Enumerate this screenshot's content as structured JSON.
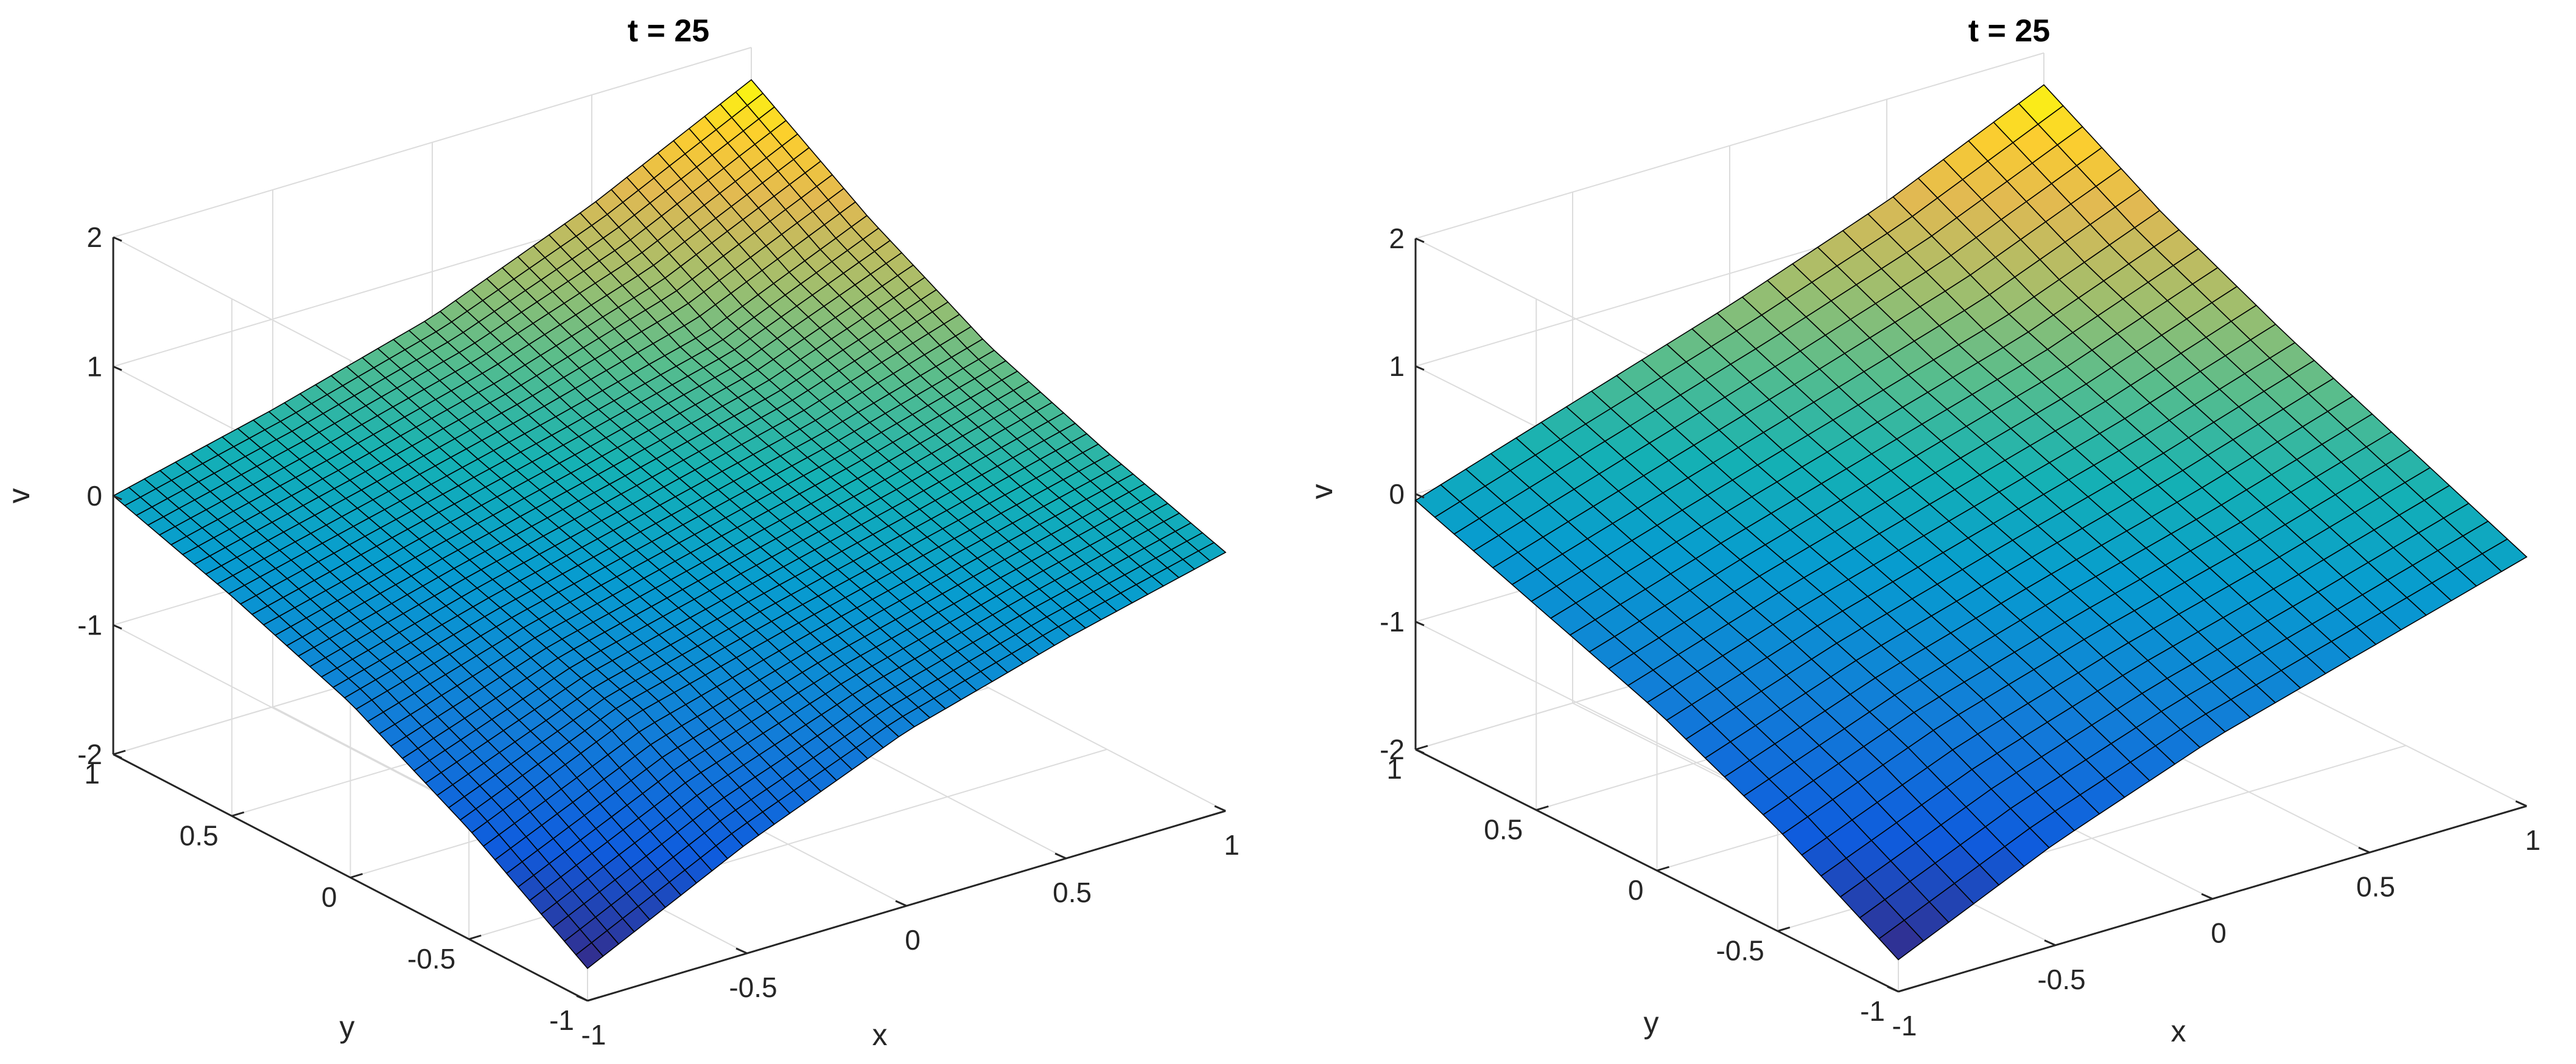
{
  "chart_data": [
    {
      "type": "surface",
      "title": "t = 25",
      "xlabel": "x",
      "ylabel": "y",
      "zlabel": "v",
      "xlim": [
        -1,
        1
      ],
      "ylim": [
        -1,
        1
      ],
      "zlim": [
        -2,
        2
      ],
      "xticks": [
        -1,
        -0.5,
        0,
        0.5,
        1
      ],
      "yticks": [
        -1,
        -0.5,
        0,
        0.5,
        1
      ],
      "zticks": [
        -2,
        -1,
        0,
        1,
        2
      ],
      "xticklabels": [
        "-1",
        "-0.5",
        "0",
        "0.5",
        "1"
      ],
      "yticklabels": [
        "-1",
        "-0.5",
        "0",
        "0.5",
        "1"
      ],
      "zticklabels": [
        "-2",
        "-1",
        "0",
        "1",
        "2"
      ],
      "grid": true,
      "colormap": "parula",
      "mesh_resolution": 41,
      "corner_values": {
        "x-1_y-1": -1.75,
        "x1_y-1": 0.0,
        "x-1_y1": 0.0,
        "x1_y1": 1.75
      },
      "surface_form": "v = 0.85*(x+y) + 0.05*(x*y)*(1-|x+y|/2) + 0.08*(x+y)^3/8*... (saddle-curved plane)",
      "values_sample": {
        "x": [
          -1,
          -0.5,
          0,
          0.5,
          1
        ],
        "y": [
          -1,
          -0.5,
          0,
          0.5,
          1
        ],
        "v": [
          [
            -1.75,
            -1.15,
            -0.65,
            -0.3,
            0.0
          ],
          [
            -1.15,
            -0.62,
            -0.3,
            0.0,
            0.3
          ],
          [
            -0.65,
            -0.3,
            0.0,
            0.3,
            0.65
          ],
          [
            -0.3,
            0.0,
            0.3,
            0.62,
            1.15
          ],
          [
            0.0,
            0.3,
            0.65,
            1.15,
            1.75
          ]
        ]
      }
    },
    {
      "type": "surface",
      "title": "t = 25",
      "xlabel": "x",
      "ylabel": "y",
      "zlabel": "v",
      "xlim": [
        -1,
        1
      ],
      "ylim": [
        -1,
        1
      ],
      "zlim": [
        -2,
        2
      ],
      "xticks": [
        -1,
        -0.5,
        0,
        0.5,
        1
      ],
      "yticks": [
        -1,
        -0.5,
        0,
        0.5,
        1
      ],
      "zticks": [
        -2,
        -1,
        0,
        1,
        2
      ],
      "xticklabels": [
        "-1",
        "-0.5",
        "0",
        "0.5",
        "1"
      ],
      "yticklabels": [
        "-1",
        "-0.5",
        "0",
        "0.5",
        "1"
      ],
      "zticklabels": [
        "-2",
        "-1",
        "0",
        "1",
        "2"
      ],
      "grid": true,
      "colormap": "parula",
      "mesh_resolution": 25,
      "corner_values": {
        "x-1_y-1": -1.75,
        "x1_y-1": -0.05,
        "x-1_y1": -0.05,
        "x1_y1": 1.75
      },
      "values_sample": {
        "x": [
          -1,
          -0.5,
          0,
          0.5,
          1
        ],
        "y": [
          -1,
          -0.5,
          0,
          0.5,
          1
        ],
        "v": [
          [
            -1.75,
            -1.2,
            -0.75,
            -0.4,
            -0.05
          ],
          [
            -1.2,
            -0.72,
            -0.35,
            -0.02,
            0.35
          ],
          [
            -0.75,
            -0.35,
            0.0,
            0.35,
            0.75
          ],
          [
            -0.4,
            -0.02,
            0.35,
            0.72,
            1.2
          ],
          [
            -0.05,
            0.35,
            0.75,
            1.2,
            1.75
          ]
        ]
      }
    }
  ]
}
